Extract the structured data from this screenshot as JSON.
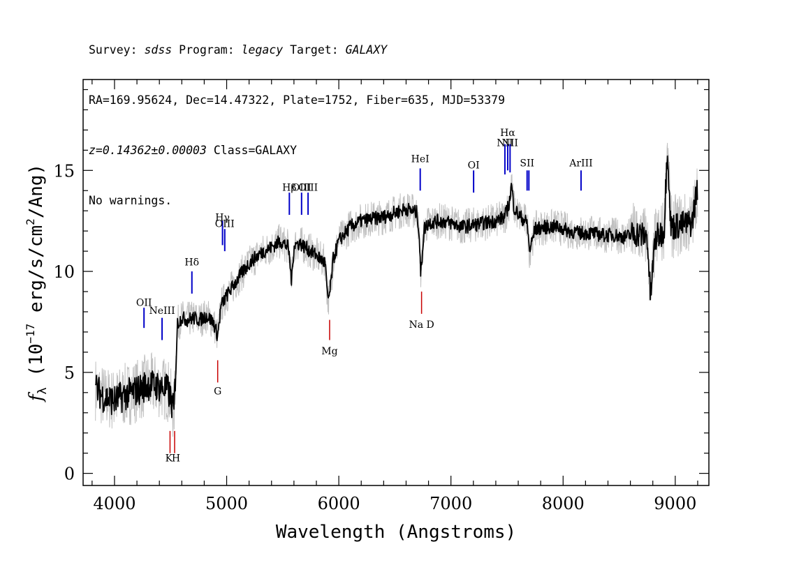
{
  "header": {
    "survey_label": "Survey: ",
    "survey": "sdss",
    "program_label": " Program: ",
    "program": "legacy",
    "target_label": " Target: ",
    "target": "GALAXY",
    "line2": "RA=169.95624, Dec=14.47322, Plate=1752, Fiber=635, MJD=53379",
    "z_text": "z=0.14362±0.00003",
    "class_text": " Class=GALAXY",
    "warnings": "No warnings."
  },
  "chart_data": {
    "type": "line",
    "xlabel": "Wavelength (Angstroms)",
    "ylabel_main": "f",
    "ylabel_sub": "λ",
    "ylabel_rest": " (10",
    "ylabel_exp1": "−17",
    "ylabel_mid": " erg/s/cm",
    "ylabel_exp2": "2",
    "ylabel_end": "/Ang)",
    "xlim": [
      3720,
      9300
    ],
    "ylim": [
      -0.6,
      19.5
    ],
    "xticks": [
      4000,
      5000,
      6000,
      7000,
      8000,
      9000
    ],
    "yticks": [
      0,
      5,
      10,
      15
    ],
    "xtick_labels": [
      "4000",
      "5000",
      "6000",
      "7000",
      "8000",
      "9000"
    ],
    "ytick_labels": [
      "0",
      "5",
      "10",
      "15"
    ],
    "grid": false,
    "series": [
      {
        "color": "#000000",
        "points": [
          [
            3830,
            4.2
          ],
          [
            3900,
            3.8
          ],
          [
            4000,
            3.6
          ],
          [
            4100,
            3.9
          ],
          [
            4200,
            4.1
          ],
          [
            4300,
            4.4
          ],
          [
            4400,
            4.3
          ],
          [
            4480,
            4.1
          ],
          [
            4530,
            3.0
          ],
          [
            4560,
            7.4
          ],
          [
            4600,
            7.7
          ],
          [
            4650,
            7.6
          ],
          [
            4700,
            7.7
          ],
          [
            4760,
            7.6
          ],
          [
            4820,
            7.8
          ],
          [
            4880,
            7.5
          ],
          [
            4920,
            6.8
          ],
          [
            4950,
            8.3
          ],
          [
            5000,
            8.8
          ],
          [
            5060,
            9.3
          ],
          [
            5120,
            9.8
          ],
          [
            5200,
            10.4
          ],
          [
            5300,
            10.9
          ],
          [
            5400,
            11.2
          ],
          [
            5480,
            11.5
          ],
          [
            5550,
            11.2
          ],
          [
            5580,
            9.5
          ],
          [
            5600,
            11.3
          ],
          [
            5650,
            11.4
          ],
          [
            5700,
            11.2
          ],
          [
            5800,
            10.8
          ],
          [
            5880,
            10.4
          ],
          [
            5900,
            8.6
          ],
          [
            5920,
            8.9
          ],
          [
            5950,
            10.6
          ],
          [
            6000,
            11.5
          ],
          [
            6100,
            12.2
          ],
          [
            6200,
            12.5
          ],
          [
            6300,
            12.6
          ],
          [
            6400,
            12.7
          ],
          [
            6500,
            12.9
          ],
          [
            6600,
            13.1
          ],
          [
            6700,
            12.9
          ],
          [
            6720,
            11.5
          ],
          [
            6730,
            9.8
          ],
          [
            6760,
            12.1
          ],
          [
            6800,
            12.4
          ],
          [
            6900,
            12.5
          ],
          [
            7000,
            12.4
          ],
          [
            7100,
            12.2
          ],
          [
            7200,
            12.3
          ],
          [
            7300,
            12.4
          ],
          [
            7400,
            12.5
          ],
          [
            7480,
            12.7
          ],
          [
            7520,
            13.4
          ],
          [
            7540,
            14.3
          ],
          [
            7560,
            13.2
          ],
          [
            7600,
            12.8
          ],
          [
            7680,
            12.4
          ],
          [
            7700,
            11.0
          ],
          [
            7750,
            12.1
          ],
          [
            7850,
            12.2
          ],
          [
            7950,
            12.2
          ],
          [
            8050,
            12.0
          ],
          [
            8150,
            11.9
          ],
          [
            8250,
            11.9
          ],
          [
            8350,
            11.8
          ],
          [
            8450,
            11.8
          ],
          [
            8550,
            11.7
          ],
          [
            8650,
            11.9
          ],
          [
            8750,
            11.7
          ],
          [
            8780,
            8.7
          ],
          [
            8820,
            11.6
          ],
          [
            8900,
            12.0
          ],
          [
            8930,
            16.3
          ],
          [
            8960,
            12.2
          ],
          [
            9050,
            12.3
          ],
          [
            9150,
            12.4
          ],
          [
            9200,
            14.3
          ]
        ]
      }
    ],
    "emission_lines": [
      {
        "name": "OII",
        "x": 4263,
        "y1": 7.2,
        "y2": 8.2,
        "ly": 8.3
      },
      {
        "name": "NeIII",
        "x": 4424,
        "y1": 6.6,
        "y2": 7.7,
        "ly": 7.9
      },
      {
        "name": "Hδ",
        "x": 4690,
        "y1": 8.9,
        "y2": 10.0,
        "ly": 10.3
      },
      {
        "name": "Hγ",
        "x": 4963,
        "y1": 11.3,
        "y2": 12.5,
        "ly": 12.5
      },
      {
        "name": "OIII",
        "x": 4983,
        "y1": 11.0,
        "y2": 12.1,
        "ly": 12.2
      },
      {
        "name": "Hβ",
        "x": 5559,
        "y1": 12.8,
        "y2": 13.9,
        "ly": 14.0
      },
      {
        "name": "OIII",
        "x": 5668,
        "y1": 12.8,
        "y2": 13.9,
        "ly": 14.0
      },
      {
        "name": "OIII",
        "x": 5726,
        "y1": 12.8,
        "y2": 13.9,
        "ly": 14.0
      },
      {
        "name": "HeI",
        "x": 6726,
        "y1": 14.0,
        "y2": 15.1,
        "ly": 15.4
      },
      {
        "name": "OI",
        "x": 7202,
        "y1": 13.9,
        "y2": 15.0,
        "ly": 15.1
      },
      {
        "name": "NII",
        "x": 7481,
        "y1": 14.8,
        "y2": 16.3,
        "ly": 16.2
      },
      {
        "name": "Hα",
        "x": 7506,
        "y1": 15.0,
        "y2": 16.3,
        "ly": 16.7
      },
      {
        "name": "NII",
        "x": 7527,
        "y1": 14.9,
        "y2": 16.3,
        "ly": 16.2
      },
      {
        "name": "SII",
        "x": 7679,
        "y1": 14.0,
        "y2": 15.0,
        "ly": 15.2
      },
      {
        "name": "SII",
        "x": 7695,
        "y1": 14.0,
        "y2": 15.0,
        "ly": null
      },
      {
        "name": "ArIII",
        "x": 8160,
        "y1": 14.0,
        "y2": 15.0,
        "ly": 15.2
      }
    ],
    "absorption_lines": [
      {
        "name": "K",
        "x": 4495,
        "y1": 1.0,
        "y2": 2.1,
        "ly": 0.6,
        "lx": 4485
      },
      {
        "name": "H",
        "x": 4536,
        "y1": 1.0,
        "y2": 2.1,
        "ly": 0.6,
        "lx": 4548
      },
      {
        "name": "G",
        "x": 4920,
        "y1": 4.5,
        "y2": 5.6,
        "ly": 3.9,
        "lx": 4920
      },
      {
        "name": "Mg",
        "x": 5918,
        "y1": 6.6,
        "y2": 7.6,
        "ly": 5.9,
        "lx": 5918
      },
      {
        "name": "Na D",
        "x": 6738,
        "y1": 7.9,
        "y2": 9.0,
        "ly": 7.2,
        "lx": 6738
      }
    ],
    "colors": {
      "flux": "#000000",
      "error_band": "#c0c0c0",
      "emission": "#0000c8",
      "absorption": "#c80000",
      "axes": "#000000"
    }
  }
}
